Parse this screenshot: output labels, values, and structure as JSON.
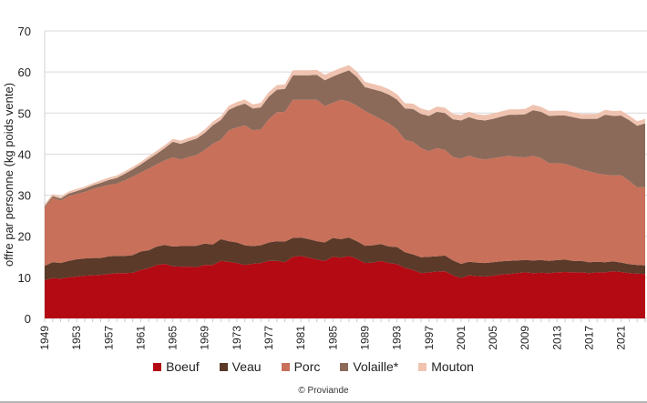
{
  "chart_data": {
    "type": "area",
    "stacked": true,
    "title": "",
    "xlabel": "",
    "ylabel": "offre par personne (kg poids vente)",
    "ylim": [
      0,
      70
    ],
    "yticks": [
      0,
      10,
      20,
      30,
      40,
      50,
      60,
      70
    ],
    "xticks": [
      1949,
      1953,
      1957,
      1961,
      1965,
      1969,
      1973,
      1977,
      1981,
      1985,
      1989,
      1993,
      1997,
      2001,
      2005,
      2009,
      2013,
      2017,
      2021
    ],
    "x_start": 1949,
    "x_end": 2024,
    "grid": true,
    "legend_position": "bottom",
    "series": [
      {
        "name": "Boeuf",
        "color": "#b30a14",
        "values": [
          9.3,
          9.8,
          9.7,
          10,
          10.2,
          10.4,
          10.5,
          10.6,
          10.8,
          11,
          11,
          11.1,
          11.8,
          12.2,
          13,
          13.3,
          12.7,
          12.6,
          12.6,
          12.5,
          13,
          13,
          14,
          13.8,
          13.5,
          13,
          13.3,
          13.5,
          14,
          14,
          13.7,
          15,
          15.2,
          14.8,
          14.3,
          14,
          15,
          14.8,
          15.2,
          14.5,
          13.5,
          13.6,
          14,
          13.5,
          13.2,
          12.3,
          11.8,
          11,
          11.2,
          11.4,
          11.5,
          10.5,
          9.8,
          10.5,
          10.3,
          10.2,
          10.4,
          10.7,
          10.8,
          11,
          11.2,
          11,
          11.1,
          11,
          11.2,
          11.3,
          11.2,
          11.2,
          11,
          11.2,
          11.2,
          11.5,
          11.3,
          11,
          10.9,
          10.8
        ]
      },
      {
        "name": "Veau",
        "color": "#5b3a29",
        "values": [
          3.5,
          3.9,
          3.8,
          4,
          4.2,
          4.2,
          4.2,
          4.1,
          4.3,
          4.2,
          4.2,
          4.3,
          4.5,
          4.4,
          4.5,
          4.6,
          4.8,
          5,
          5,
          5.2,
          5.2,
          5,
          5.3,
          5,
          5,
          4.8,
          4.3,
          4.3,
          4.5,
          4.8,
          5,
          4.6,
          4.5,
          4.5,
          4.5,
          4.5,
          4.6,
          4.5,
          4.5,
          4.3,
          4.2,
          4.2,
          4.1,
          4,
          4.2,
          3.8,
          3.8,
          3.9,
          3.8,
          3.7,
          3.8,
          3.6,
          3.5,
          3.3,
          3.3,
          3.3,
          3.3,
          3.2,
          3.2,
          3.1,
          3,
          3.1,
          3.1,
          3,
          3,
          3,
          2.8,
          2.8,
          2.7,
          2.6,
          2.5,
          2.4,
          2.3,
          2.2,
          2.1,
          2.1
        ]
      },
      {
        "name": "Porc",
        "color": "#c8705a",
        "values": [
          14.2,
          15.6,
          15.2,
          15.8,
          15.9,
          16.2,
          16.8,
          17.3,
          17.4,
          17.6,
          18.4,
          19.1,
          19.2,
          19.9,
          20,
          20.6,
          21.7,
          21.1,
          21.7,
          22.1,
          22.8,
          24.5,
          24.2,
          27,
          28,
          29.2,
          28.2,
          28.2,
          30,
          31.4,
          31.6,
          33.6,
          33.5,
          33.9,
          34.4,
          33.2,
          32.9,
          33.9,
          33.1,
          33,
          32.8,
          31.7,
          30.4,
          30,
          28.6,
          27.4,
          27.4,
          26.6,
          25.7,
          26.4,
          25.7,
          25.2,
          25.6,
          25.8,
          25.4,
          25.2,
          25.3,
          25.4,
          25.6,
          25.2,
          25,
          25.5,
          24.8,
          23.8,
          23.6,
          23.3,
          23,
          22.3,
          22.1,
          21.5,
          21.3,
          20.9,
          21.3,
          20.3,
          18.9,
          19.1
        ]
      },
      {
        "name": "Volaille*",
        "color": "#8b6a5a",
        "values": [
          0.3,
          0.5,
          0.5,
          0.6,
          0.7,
          0.8,
          0.9,
          1,
          1.2,
          1.4,
          1.6,
          1.8,
          2,
          2.3,
          2.6,
          3,
          3.8,
          3.8,
          3.9,
          4,
          4.2,
          4.5,
          4.8,
          5,
          5.2,
          5.3,
          5.3,
          5.4,
          5.5,
          5.5,
          5.6,
          6,
          6,
          6,
          6.1,
          6.3,
          6.4,
          6.5,
          7.6,
          7,
          5.8,
          6.3,
          6.8,
          7,
          7.3,
          7.6,
          8,
          8.3,
          8.6,
          8.8,
          9,
          9.2,
          9.3,
          9.4,
          9.4,
          9.5,
          9.6,
          9.8,
          10,
          10.3,
          10.5,
          11.1,
          11.3,
          11.5,
          11.6,
          11.8,
          12,
          12.3,
          12.8,
          13.3,
          14.6,
          14.5,
          14.5,
          14.8,
          15,
          15.5
        ]
      },
      {
        "name": "Mouton",
        "color": "#efc3b0",
        "values": [
          0.5,
          0.5,
          0.5,
          0.5,
          0.5,
          0.5,
          0.5,
          0.6,
          0.6,
          0.6,
          0.6,
          0.6,
          0.6,
          0.7,
          0.7,
          0.7,
          0.7,
          0.8,
          0.8,
          0.8,
          0.8,
          0.9,
          0.9,
          1,
          1,
          1,
          1,
          1.1,
          1.1,
          1.1,
          1.1,
          1.2,
          1.2,
          1.2,
          1.2,
          1.3,
          1.3,
          1.3,
          1.3,
          1.3,
          1.3,
          1.3,
          1.3,
          1.3,
          1.3,
          1.3,
          1.3,
          1.3,
          1.3,
          1.3,
          1.3,
          1.3,
          1.3,
          1.3,
          1.3,
          1.3,
          1.3,
          1.3,
          1.3,
          1.3,
          1.3,
          1.3,
          1.2,
          1.2,
          1.2,
          1.2,
          1.2,
          1.2,
          1.2,
          1.2,
          1.2,
          1.2,
          1.2,
          1.1,
          1.1,
          1.1
        ]
      }
    ],
    "source": "© Proviande"
  }
}
